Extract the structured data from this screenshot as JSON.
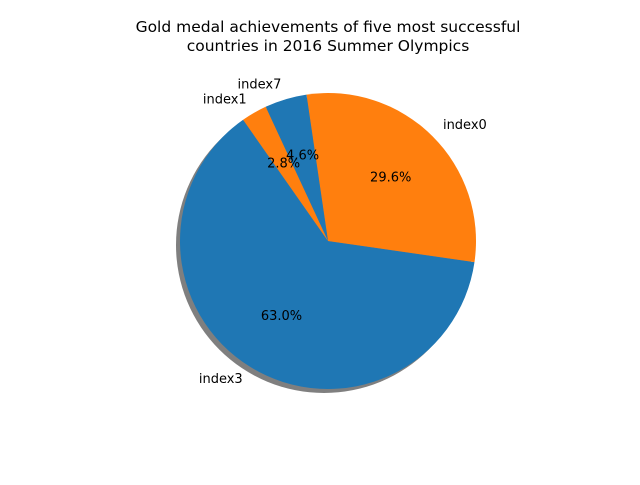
{
  "chart_data": {
    "type": "pie",
    "title_lines": [
      "Gold medal achievements of five most successful",
      "countries in 2016 Summer Olympics"
    ],
    "start_angle_deg": 125,
    "shadow": true,
    "slices": [
      {
        "label": "index3",
        "value": 63.0,
        "pct_label": "63.0%",
        "color": "#1f77b4"
      },
      {
        "label": "index0",
        "value": 29.6,
        "pct_label": "29.6%",
        "color": "#ff7f0e"
      },
      {
        "label": "index7",
        "value": 4.6,
        "pct_label": "4.6%",
        "color": "#1f77b4"
      },
      {
        "label": "index1",
        "value": 2.8,
        "pct_label": "2.8%",
        "color": "#ff7f0e"
      }
    ]
  }
}
